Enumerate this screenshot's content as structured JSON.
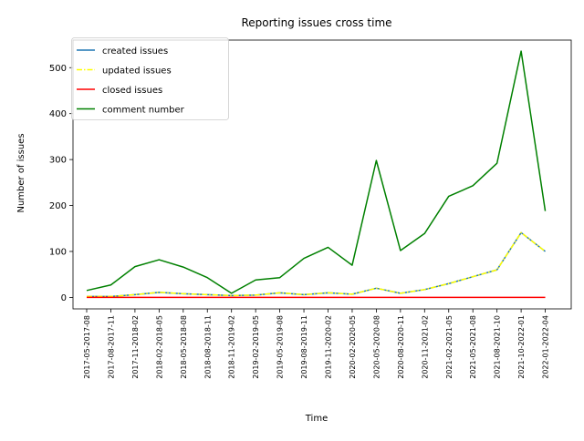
{
  "chart_data": {
    "type": "line",
    "title": "Reporting issues cross time",
    "xlabel": "Time",
    "ylabel": "Number of issues",
    "ylim": [
      -25,
      560
    ],
    "yticks": [
      0,
      100,
      200,
      300,
      400,
      500
    ],
    "grid": false,
    "legend_position": "top-left",
    "categories": [
      "2017-05-2017-08",
      "2017-08-2017-11",
      "2017-11-2018-02",
      "2018-02-2018-05",
      "2018-05-2018-08",
      "2018-08-2018-11",
      "2018-11-2019-02",
      "2019-02-2019-05",
      "2019-05-2019-08",
      "2019-08-2019-11",
      "2019-11-2020-02",
      "2020-02-2020-05",
      "2020-05-2020-08",
      "2020-08-2020-11",
      "2020-11-2021-02",
      "2021-02-2021-05",
      "2021-05-2021-08",
      "2021-08-2021-10",
      "2021-10-2022-01",
      "2022-01-2022-04"
    ],
    "series": [
      {
        "name": "created issues",
        "color": "#1f77b4",
        "style": "solid",
        "values": [
          2,
          2,
          6,
          11,
          8,
          6,
          4,
          5,
          10,
          6,
          10,
          7,
          20,
          9,
          17,
          30,
          45,
          60,
          141,
          100
        ]
      },
      {
        "name": "updated issues",
        "color": "#ffff00",
        "style": "dashdot",
        "values": [
          2,
          2,
          6,
          11,
          8,
          6,
          4,
          5,
          10,
          6,
          10,
          7,
          20,
          9,
          17,
          30,
          45,
          60,
          141,
          100
        ]
      },
      {
        "name": "closed issues",
        "color": "#ff0000",
        "style": "solid",
        "values": [
          0,
          0,
          0,
          0,
          0,
          0,
          0,
          0,
          0,
          0,
          0,
          0,
          0,
          0,
          0,
          0,
          0,
          0,
          0,
          0
        ]
      },
      {
        "name": "comment number",
        "color": "#008000",
        "style": "solid",
        "values": [
          15,
          27,
          67,
          82,
          66,
          43,
          9,
          38,
          43,
          85,
          109,
          70,
          298,
          102,
          139,
          220,
          243,
          292,
          536,
          188
        ]
      }
    ]
  }
}
